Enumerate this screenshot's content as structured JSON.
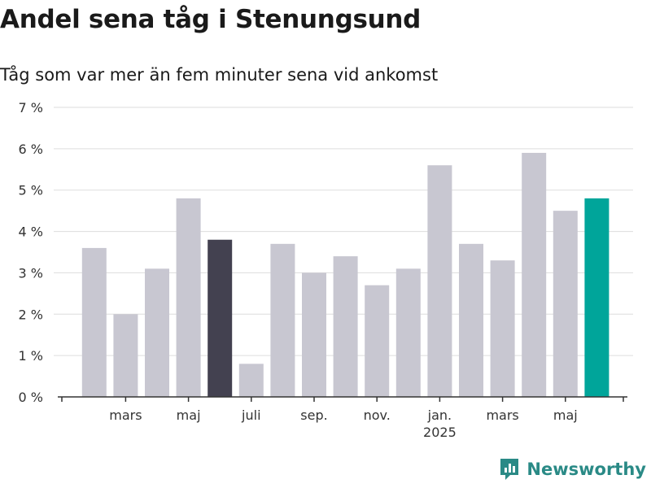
{
  "header": {
    "title": "Andel sena tåg i Stenungsund",
    "subtitle": "Tåg som var mer än fem minuter sena vid ankomst"
  },
  "brand": {
    "name": "Newsworthy",
    "icon": "newsworthy-logo-icon",
    "color": "#2a8a86"
  },
  "colors": {
    "bar": "#c8c7d1",
    "highlight_dark": "#434150",
    "highlight_accent": "#00a59a",
    "grid": "#dddddd",
    "axis": "#333333"
  },
  "chart_data": {
    "type": "bar",
    "title": "Andel sena tåg i Stenungsund",
    "subtitle": "Tåg som var mer än fem minuter sena vid ankomst",
    "xlabel": "",
    "ylabel": "",
    "ylim": [
      0,
      7
    ],
    "yticks": [
      0,
      1,
      2,
      3,
      4,
      5,
      6,
      7
    ],
    "ytick_labels": [
      "0 %",
      "1 %",
      "2 %",
      "3 %",
      "4 %",
      "5 %",
      "6 %",
      "7 %"
    ],
    "grid": true,
    "categories": [
      "2024-02",
      "2024-03",
      "2024-04",
      "2024-05",
      "2024-06",
      "2024-07",
      "2024-08",
      "2024-09",
      "2024-10",
      "2024-11",
      "2024-12",
      "2025-01",
      "2025-02",
      "2025-03",
      "2025-04",
      "2025-05",
      "2025-06"
    ],
    "values": [
      3.6,
      2.0,
      3.1,
      4.8,
      3.8,
      0.8,
      3.7,
      3.0,
      3.4,
      2.7,
      3.1,
      5.6,
      3.7,
      3.3,
      5.9,
      4.5,
      4.8
    ],
    "highlight": {
      "2024-06": "dark",
      "2025-06": "accent"
    },
    "xtick_labels": [
      {
        "at": "2024-03",
        "label": "mars"
      },
      {
        "at": "2024-05",
        "label": "maj"
      },
      {
        "at": "2024-07",
        "label": "juli"
      },
      {
        "at": "2024-09",
        "label": "sep."
      },
      {
        "at": "2024-11",
        "label": "nov."
      },
      {
        "at": "2025-01",
        "label": "jan.",
        "sublabel": "2025"
      },
      {
        "at": "2025-03",
        "label": "mars"
      },
      {
        "at": "2025-05",
        "label": "maj"
      }
    ]
  }
}
